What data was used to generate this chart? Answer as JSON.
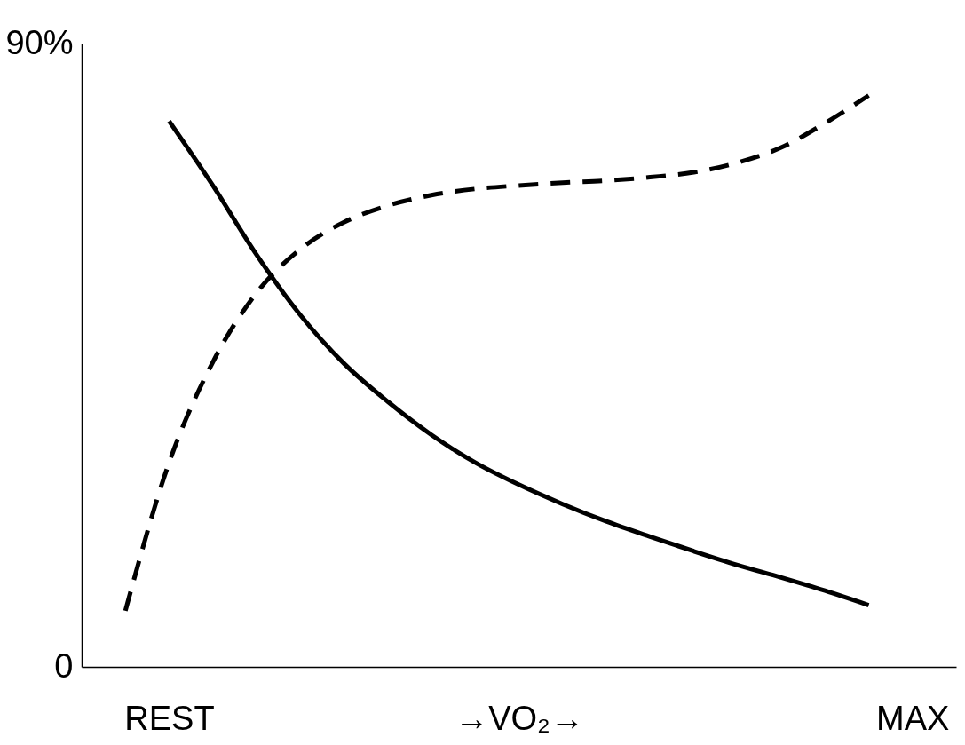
{
  "chart_data": {
    "type": "line",
    "categories": [
      null,
      "REST",
      null,
      null,
      null,
      null,
      null,
      null,
      null,
      "→VO₂→",
      null,
      null,
      null,
      null,
      null,
      null,
      null,
      null,
      "MAX"
    ],
    "ylim": [
      0,
      90
    ],
    "yticks": [
      0,
      {
        "value": 90,
        "label": "90%"
      }
    ],
    "series": [
      {
        "color": "#000000",
        "line_style": "solid",
        "values": [
          null,
          78.8,
          69.5,
          59.5,
          50.8,
          43.8,
          38.3,
          33.5,
          29.5,
          26.3,
          23.5,
          21.0,
          18.8,
          16.7,
          14.7,
          12.9,
          11.0,
          8.9,
          null
        ]
      },
      {
        "color": "#000000",
        "line_style": "dashed",
        "values": [
          8.1,
          29.5,
          44.0,
          54.0,
          60.3,
          64.2,
          66.6,
          68.1,
          69.0,
          69.5,
          69.9,
          70.2,
          70.7,
          71.4,
          72.8,
          75.0,
          78.5,
          82.5,
          null
        ]
      }
    ]
  }
}
